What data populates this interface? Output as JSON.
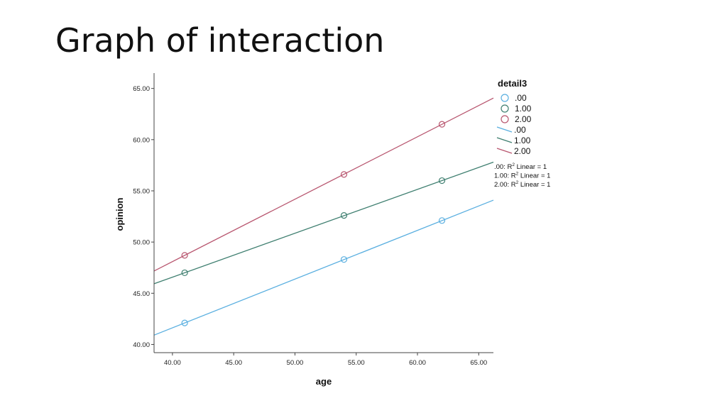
{
  "slide": {
    "title": "Graph of interaction"
  },
  "chart_data": {
    "type": "scatter",
    "xlabel": "age",
    "ylabel": "opinion",
    "xlim": [
      38.5,
      66.2
    ],
    "ylim": [
      39.2,
      66.5
    ],
    "x_ticks": [
      "40.00",
      "45.00",
      "50.00",
      "55.00",
      "60.00",
      "65.00"
    ],
    "y_ticks": [
      "40.00",
      "45.00",
      "50.00",
      "55.00",
      "60.00",
      "65.00"
    ],
    "legend": {
      "title": "detail3",
      "placement": "right",
      "marker_entries": [
        ".00",
        "1.00",
        "2.00"
      ],
      "line_entries": [
        ".00",
        "1.00",
        "2.00"
      ],
      "r2_lines": [
        {
          "prefix": ".00: R",
          "sup": "2",
          "suffix": " Linear = 1"
        },
        {
          "prefix": "1.00: R",
          "sup": "2",
          "suffix": " Linear = 1"
        },
        {
          "prefix": "2.00: R",
          "sup": "2",
          "suffix": " Linear = 1"
        }
      ]
    },
    "series": [
      {
        "name": ".00",
        "color": "#5aafe0",
        "x": [
          41,
          54,
          62
        ],
        "y": [
          42.1,
          48.3,
          52.1
        ],
        "fit": {
          "slope": 0.4759,
          "intercept": 22.588
        }
      },
      {
        "name": "1.00",
        "color": "#3f7f70",
        "x": [
          41,
          54,
          62
        ],
        "y": [
          47.0,
          52.6,
          56.0
        ],
        "fit": {
          "slope": 0.4286,
          "intercept": 29.428
        }
      },
      {
        "name": "2.00",
        "color": "#b8566f",
        "x": [
          41,
          54,
          62
        ],
        "y": [
          48.7,
          56.6,
          61.5
        ],
        "fit": {
          "slope": 0.6095,
          "intercept": 23.71
        }
      }
    ],
    "grid": false
  }
}
